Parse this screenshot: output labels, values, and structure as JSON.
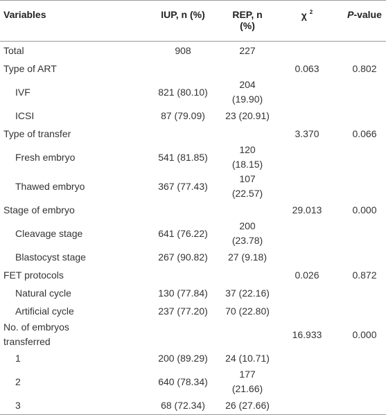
{
  "table": {
    "header": {
      "variables": "Variables",
      "iup": "IUP, n (%)",
      "rep": "REP, n (%)",
      "chi_symbol": "χ",
      "chi_sup": "2",
      "p_italic": "P",
      "p_rest": "-value"
    },
    "rows": [
      {
        "label": "Total",
        "iup": "908",
        "rep": "227"
      },
      {
        "label": "Type of ART",
        "chi2": "0.063",
        "p": "0.802"
      },
      {
        "label": "IVF",
        "sub": true,
        "iup": "821 (80.10)",
        "rep": "204 (19.90)"
      },
      {
        "label": "ICSI",
        "sub": true,
        "iup": "87 (79.09)",
        "rep": "23 (20.91)"
      },
      {
        "label": "Type of transfer",
        "chi2": "3.370",
        "p": "0.066"
      },
      {
        "label": "Fresh embryo",
        "sub": true,
        "iup": "541 (81.85)",
        "rep": "120 (18.15)"
      },
      {
        "label": "Thawed embryo",
        "sub": true,
        "iup": "367 (77.43)",
        "rep": "107 (22.57)"
      },
      {
        "label": "Stage of embryo",
        "chi2": "29.013",
        "p": "0.000"
      },
      {
        "label": "Cleavage stage",
        "sub": true,
        "iup": "641 (76.22)",
        "rep": "200 (23.78)"
      },
      {
        "label": "Blastocyst stage",
        "sub": true,
        "iup": "267 (90.82)",
        "rep": "27 (9.18)"
      },
      {
        "label": "FET protocols",
        "chi2": "0.026",
        "p": "0.872"
      },
      {
        "label": "Natural cycle",
        "sub": true,
        "iup": "130 (77.84)",
        "rep": "37 (22.16)"
      },
      {
        "label": "Artificial cycle",
        "sub": true,
        "iup": "237 (77.20)",
        "rep": "70 (22.80)"
      },
      {
        "label": "No. of embryos transferred",
        "chi2": "16.933",
        "p": "0.000"
      },
      {
        "label": "1",
        "sub": true,
        "iup": "200 (89.29)",
        "rep": "24 (10.71)"
      },
      {
        "label": "2",
        "sub": true,
        "iup": "640 (78.34)",
        "rep": "177 (21.66)"
      },
      {
        "label": "3",
        "sub": true,
        "iup": "68 (72.34)",
        "rep": "26 (27.66)"
      }
    ]
  }
}
